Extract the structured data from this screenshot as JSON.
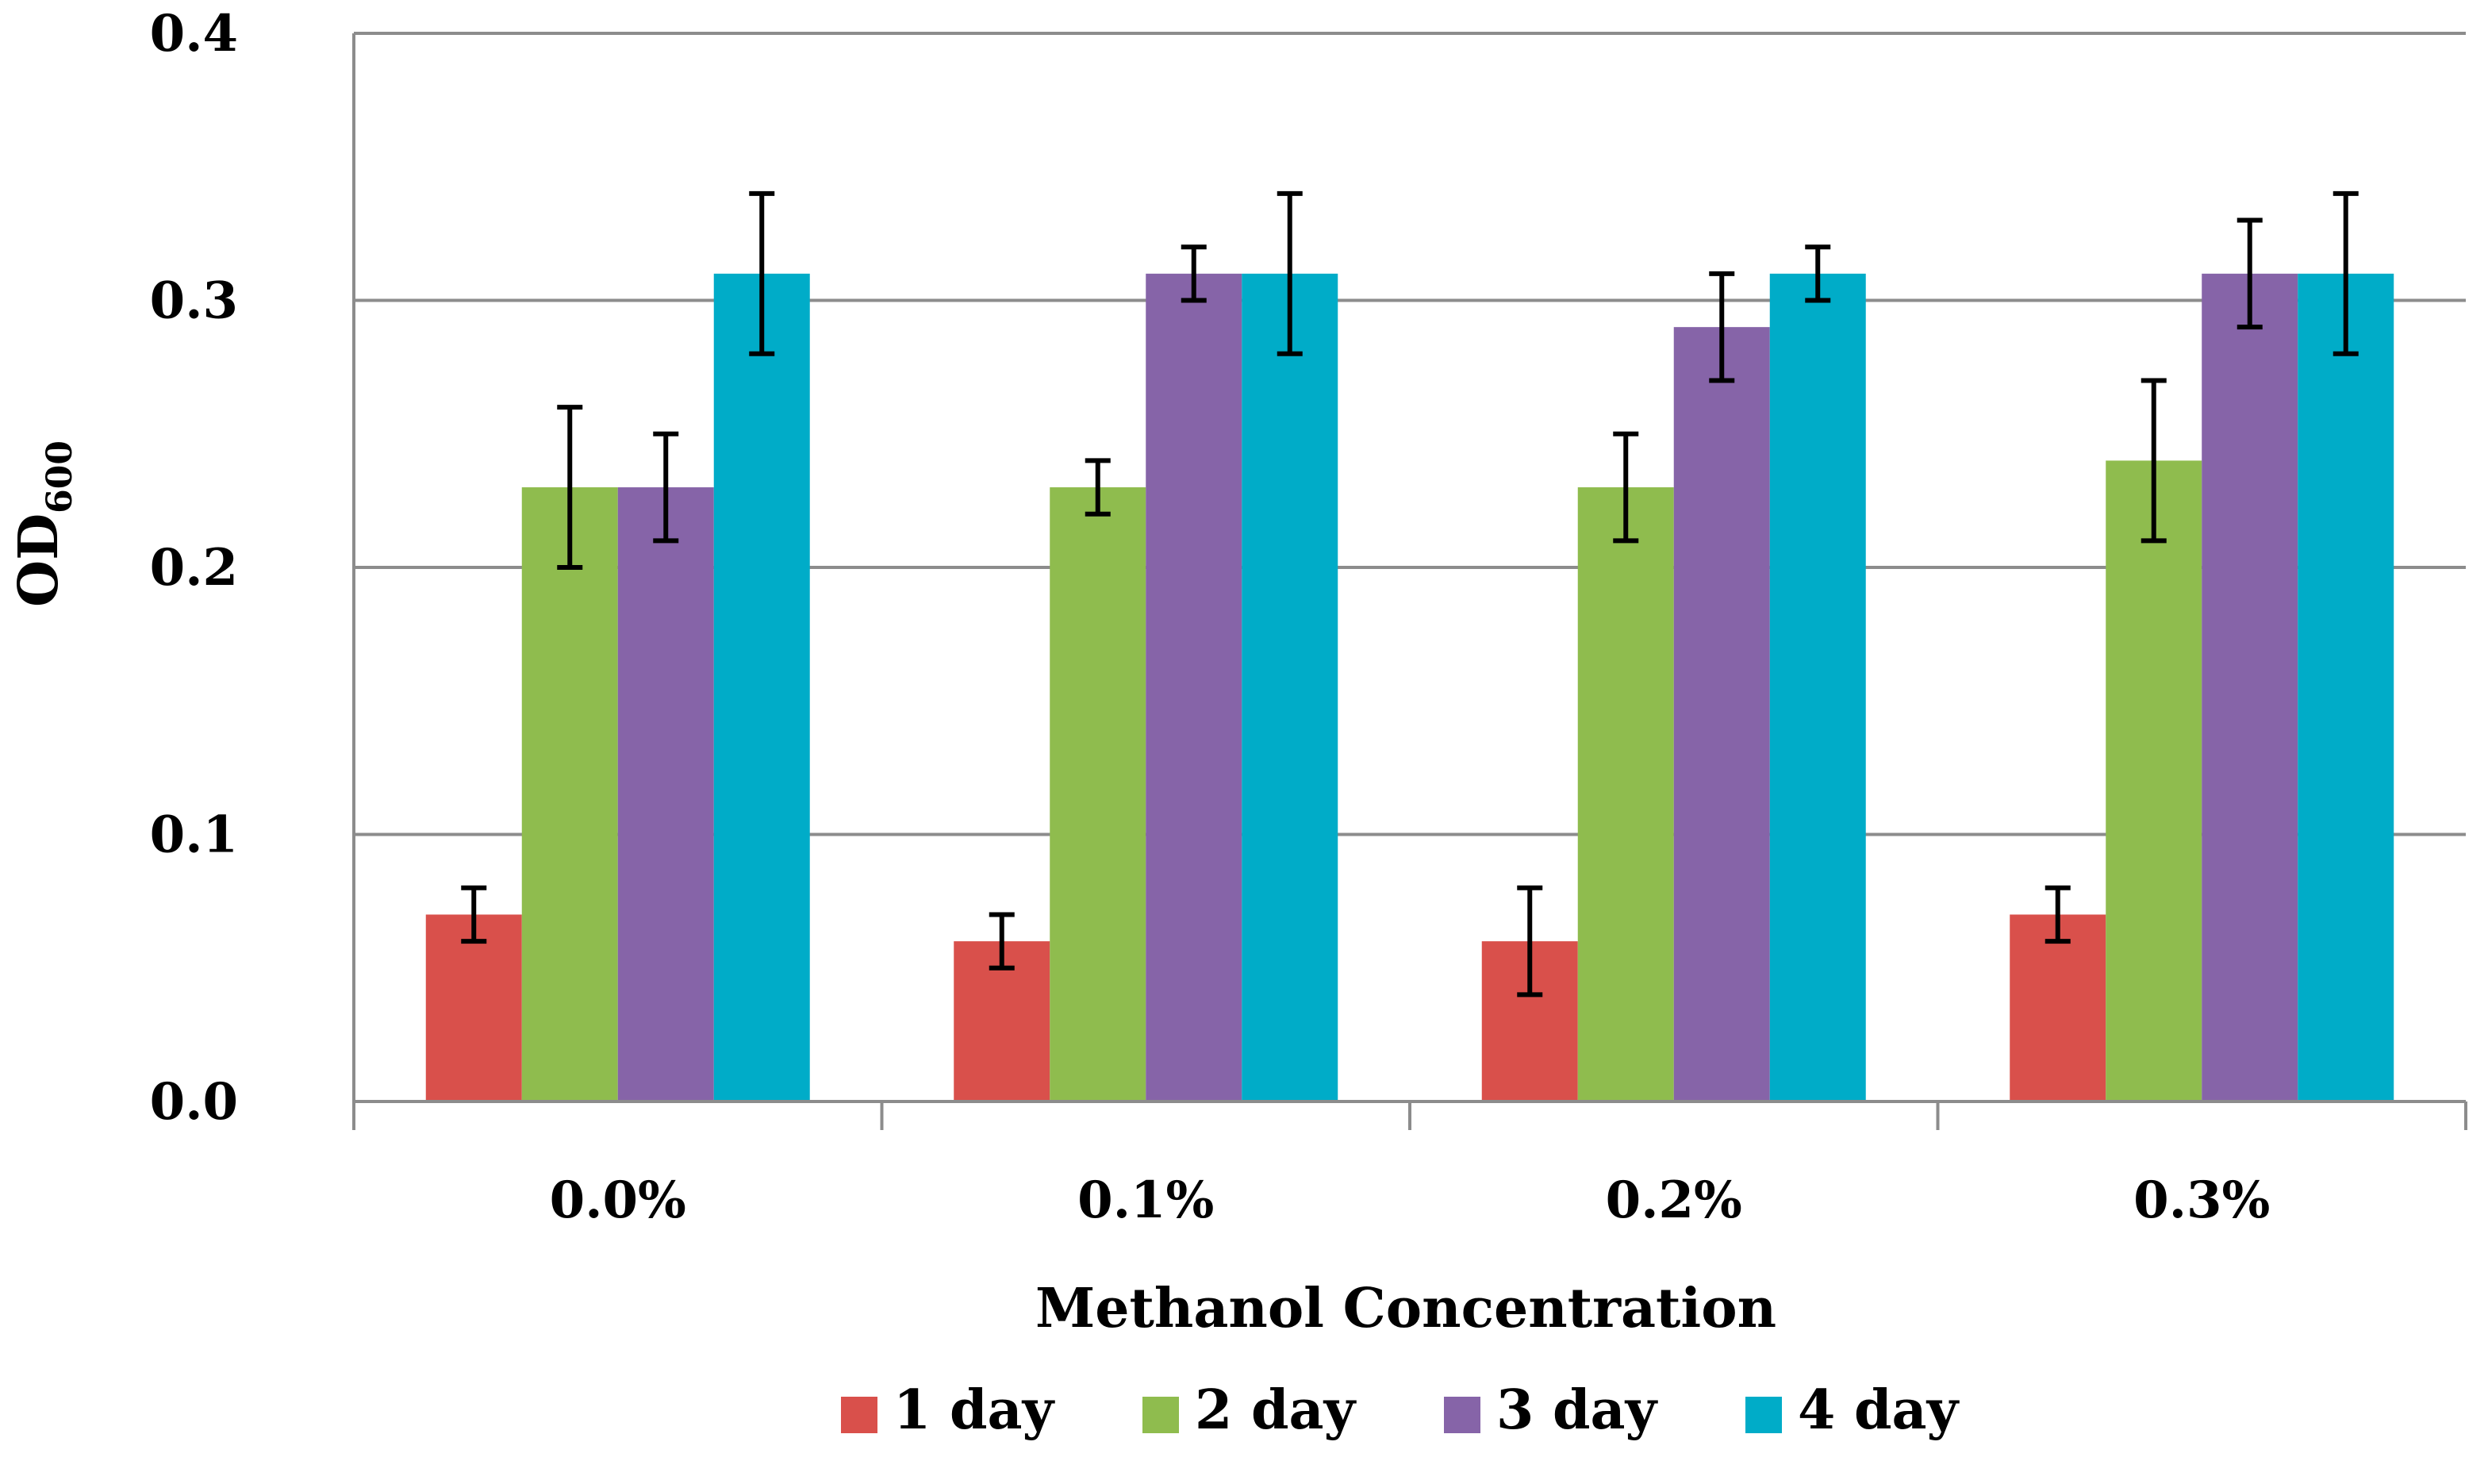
{
  "chart_data": {
    "type": "bar",
    "title": "",
    "xlabel": "Methanol Concentration",
    "ylabel": "OD",
    "ylabel_subscript": "600",
    "ylim": [
      0,
      0.4
    ],
    "yticks": [
      "0.0",
      "0.1",
      "0.2",
      "0.3",
      "0.4"
    ],
    "ytick_values": [
      0,
      0.1,
      0.2,
      0.3,
      0.4
    ],
    "grid": true,
    "legend_position": "bottom",
    "categories": [
      "0.0%",
      "0.1%",
      "0.2%",
      "0.3%"
    ],
    "series": [
      {
        "name": "1 day",
        "color": "#d9504b",
        "values": [
          0.07,
          0.06,
          0.06,
          0.07
        ],
        "errors": [
          0.01,
          0.01,
          0.02,
          0.01
        ]
      },
      {
        "name": "2 day",
        "color": "#8fbc4e",
        "values": [
          0.23,
          0.23,
          0.23,
          0.24
        ],
        "errors": [
          0.03,
          0.01,
          0.02,
          0.03
        ]
      },
      {
        "name": "3 day",
        "color": "#8664a8",
        "values": [
          0.23,
          0.31,
          0.29,
          0.31
        ],
        "errors": [
          0.02,
          0.01,
          0.02,
          0.02
        ]
      },
      {
        "name": "4 day",
        "color": "#00acc8",
        "values": [
          0.31,
          0.31,
          0.31,
          0.31
        ],
        "errors": [
          0.03,
          0.03,
          0.01,
          0.03
        ]
      }
    ]
  }
}
